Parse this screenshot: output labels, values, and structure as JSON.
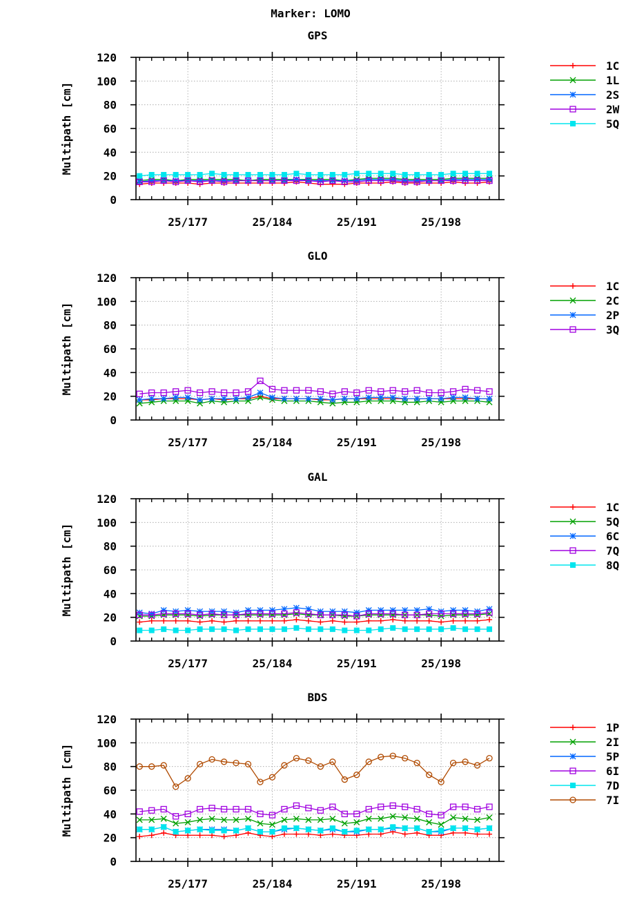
{
  "figure_title": "Marker: LOMO",
  "chart_data": [
    {
      "type": "line",
      "title": "GPS",
      "ylabel": "Multipath [cm]",
      "xlabel": "",
      "ylim": [
        0,
        120
      ],
      "yticks": [
        0,
        20,
        40,
        60,
        80,
        100,
        120
      ],
      "xlim": [
        172.7,
        202.8
      ],
      "xticks": [
        {
          "value": 177,
          "label": "25/177"
        },
        {
          "value": 184,
          "label": "25/184"
        },
        {
          "value": 191,
          "label": "25/191"
        },
        {
          "value": 198,
          "label": "25/198"
        }
      ],
      "grid": true,
      "legend_position": "right",
      "x": [
        173,
        174,
        175,
        176,
        177,
        178,
        179,
        180,
        181,
        182,
        183,
        184,
        185,
        186,
        187,
        188,
        189,
        190,
        191,
        192,
        193,
        194,
        195,
        196,
        197,
        198,
        199,
        200,
        201,
        202
      ],
      "series": [
        {
          "name": "1C",
          "color": "#ff0000",
          "marker": "plus",
          "values": [
            13,
            14,
            14,
            14,
            14,
            13,
            14,
            14,
            14,
            14,
            14,
            14,
            14,
            15,
            14,
            13,
            13,
            13,
            14,
            14,
            14,
            15,
            14,
            14,
            14,
            14,
            15,
            14,
            14,
            15
          ]
        },
        {
          "name": "1L",
          "color": "#00a000",
          "marker": "x",
          "values": [
            16,
            17,
            17,
            16,
            17,
            17,
            17,
            17,
            17,
            16,
            17,
            17,
            17,
            17,
            17,
            17,
            17,
            16,
            17,
            18,
            18,
            18,
            17,
            17,
            17,
            17,
            18,
            18,
            18,
            18
          ]
        },
        {
          "name": "2S",
          "color": "#0066ff",
          "marker": "star",
          "values": [
            15,
            16,
            16,
            16,
            16,
            16,
            16,
            16,
            16,
            16,
            16,
            16,
            16,
            17,
            16,
            16,
            16,
            16,
            16,
            17,
            17,
            17,
            16,
            16,
            16,
            16,
            17,
            17,
            17,
            17
          ]
        },
        {
          "name": "2W",
          "color": "#a000e0",
          "marker": "square",
          "values": [
            15,
            15,
            16,
            15,
            16,
            15,
            16,
            15,
            16,
            16,
            16,
            16,
            16,
            16,
            16,
            15,
            16,
            15,
            15,
            16,
            16,
            16,
            15,
            15,
            16,
            16,
            16,
            16,
            16,
            16
          ]
        },
        {
          "name": "5Q",
          "color": "#00e5ee",
          "marker": "filled-square",
          "values": [
            20,
            21,
            21,
            21,
            21,
            21,
            22,
            21,
            21,
            21,
            21,
            21,
            21,
            22,
            21,
            21,
            21,
            21,
            22,
            22,
            22,
            22,
            21,
            21,
            21,
            21,
            22,
            22,
            22,
            22
          ]
        }
      ]
    },
    {
      "type": "line",
      "title": "GLO",
      "ylabel": "Multipath [cm]",
      "xlabel": "",
      "ylim": [
        0,
        120
      ],
      "yticks": [
        0,
        20,
        40,
        60,
        80,
        100,
        120
      ],
      "xlim": [
        172.7,
        202.8
      ],
      "xticks": [
        {
          "value": 177,
          "label": "25/177"
        },
        {
          "value": 184,
          "label": "25/184"
        },
        {
          "value": 191,
          "label": "25/191"
        },
        {
          "value": 198,
          "label": "25/198"
        }
      ],
      "grid": true,
      "legend_position": "right",
      "x": [
        173,
        174,
        175,
        176,
        177,
        178,
        179,
        180,
        181,
        182,
        183,
        184,
        185,
        186,
        187,
        188,
        189,
        190,
        191,
        192,
        193,
        194,
        195,
        196,
        197,
        198,
        199,
        200,
        201,
        202
      ],
      "series": [
        {
          "name": "1C",
          "color": "#ff0000",
          "marker": "plus",
          "values": [
            17,
            17,
            18,
            18,
            18,
            17,
            18,
            17,
            18,
            18,
            20,
            18,
            18,
            18,
            18,
            17,
            17,
            18,
            18,
            18,
            18,
            18,
            18,
            18,
            18,
            18,
            18,
            18,
            18,
            18
          ]
        },
        {
          "name": "2C",
          "color": "#00a000",
          "marker": "x",
          "values": [
            14,
            15,
            16,
            16,
            16,
            14,
            16,
            15,
            16,
            16,
            19,
            17,
            16,
            16,
            16,
            15,
            14,
            15,
            15,
            16,
            16,
            16,
            15,
            15,
            16,
            15,
            16,
            16,
            16,
            15
          ]
        },
        {
          "name": "2P",
          "color": "#0066ff",
          "marker": "star",
          "values": [
            17,
            18,
            18,
            19,
            19,
            17,
            18,
            18,
            18,
            19,
            23,
            19,
            18,
            18,
            18,
            18,
            17,
            18,
            18,
            19,
            19,
            19,
            18,
            18,
            18,
            18,
            19,
            19,
            18,
            18
          ]
        },
        {
          "name": "3Q",
          "color": "#a000e0",
          "marker": "square",
          "values": [
            22,
            23,
            23,
            24,
            25,
            23,
            24,
            23,
            23,
            24,
            33,
            26,
            25,
            25,
            25,
            24,
            22,
            24,
            23,
            25,
            24,
            25,
            24,
            25,
            23,
            23,
            24,
            26,
            25,
            24
          ]
        }
      ]
    },
    {
      "type": "line",
      "title": "GAL",
      "ylabel": "Multipath [cm]",
      "xlabel": "",
      "ylim": [
        0,
        120
      ],
      "yticks": [
        0,
        20,
        40,
        60,
        80,
        100,
        120
      ],
      "xlim": [
        172.7,
        202.8
      ],
      "xticks": [
        {
          "value": 177,
          "label": "25/177"
        },
        {
          "value": 184,
          "label": "25/184"
        },
        {
          "value": 191,
          "label": "25/191"
        },
        {
          "value": 198,
          "label": "25/198"
        }
      ],
      "grid": true,
      "legend_position": "right",
      "x": [
        173,
        174,
        175,
        176,
        177,
        178,
        179,
        180,
        181,
        182,
        183,
        184,
        185,
        186,
        187,
        188,
        189,
        190,
        191,
        192,
        193,
        194,
        195,
        196,
        197,
        198,
        199,
        200,
        201,
        202
      ],
      "series": [
        {
          "name": "1C",
          "color": "#ff0000",
          "marker": "plus",
          "values": [
            16,
            17,
            17,
            17,
            17,
            16,
            17,
            16,
            17,
            17,
            17,
            17,
            17,
            18,
            17,
            16,
            17,
            16,
            16,
            17,
            17,
            18,
            17,
            17,
            17,
            16,
            17,
            17,
            17,
            18
          ]
        },
        {
          "name": "5Q",
          "color": "#00a000",
          "marker": "x",
          "values": [
            21,
            21,
            22,
            22,
            22,
            21,
            22,
            22,
            22,
            22,
            22,
            22,
            22,
            23,
            22,
            22,
            22,
            21,
            21,
            22,
            22,
            22,
            22,
            22,
            22,
            21,
            22,
            22,
            22,
            23
          ]
        },
        {
          "name": "6C",
          "color": "#0066ff",
          "marker": "star",
          "values": [
            24,
            23,
            26,
            25,
            26,
            25,
            25,
            25,
            24,
            26,
            26,
            26,
            27,
            28,
            27,
            25,
            25,
            25,
            24,
            26,
            26,
            26,
            26,
            26,
            27,
            25,
            26,
            26,
            25,
            27
          ]
        },
        {
          "name": "7Q",
          "color": "#a000e0",
          "marker": "square",
          "values": [
            22,
            22,
            23,
            23,
            23,
            22,
            23,
            22,
            22,
            23,
            23,
            23,
            23,
            24,
            23,
            22,
            22,
            22,
            21,
            23,
            23,
            23,
            22,
            22,
            23,
            23,
            23,
            23,
            23,
            24
          ]
        },
        {
          "name": "8Q",
          "color": "#00e5ee",
          "marker": "filled-square",
          "values": [
            9,
            9,
            10,
            9,
            9,
            10,
            10,
            10,
            9,
            10,
            10,
            10,
            10,
            11,
            10,
            10,
            10,
            9,
            9,
            9,
            10,
            11,
            10,
            10,
            10,
            10,
            11,
            10,
            10,
            10
          ]
        }
      ]
    },
    {
      "type": "line",
      "title": "BDS",
      "ylabel": "Multipath [cm]",
      "xlabel": "",
      "ylim": [
        0,
        120
      ],
      "yticks": [
        0,
        20,
        40,
        60,
        80,
        100,
        120
      ],
      "xlim": [
        172.7,
        202.8
      ],
      "xticks": [
        {
          "value": 177,
          "label": "25/177"
        },
        {
          "value": 184,
          "label": "25/184"
        },
        {
          "value": 191,
          "label": "25/191"
        },
        {
          "value": 198,
          "label": "25/198"
        }
      ],
      "grid": true,
      "legend_position": "right",
      "x": [
        173,
        174,
        175,
        176,
        177,
        178,
        179,
        180,
        181,
        182,
        183,
        184,
        185,
        186,
        187,
        188,
        189,
        190,
        191,
        192,
        193,
        194,
        195,
        196,
        197,
        198,
        199,
        200,
        201,
        202
      ],
      "series": [
        {
          "name": "1P",
          "color": "#ff0000",
          "marker": "plus",
          "values": [
            21,
            22,
            24,
            22,
            22,
            22,
            22,
            21,
            22,
            24,
            22,
            21,
            23,
            23,
            23,
            22,
            23,
            22,
            22,
            23,
            23,
            25,
            23,
            24,
            22,
            22,
            24,
            24,
            23,
            23
          ]
        },
        {
          "name": "2I",
          "color": "#00a000",
          "marker": "x",
          "values": [
            35,
            35,
            36,
            32,
            33,
            35,
            36,
            35,
            35,
            36,
            32,
            31,
            35,
            36,
            35,
            35,
            36,
            32,
            33,
            36,
            36,
            38,
            37,
            36,
            33,
            31,
            37,
            36,
            35,
            37
          ]
        },
        {
          "name": "5P",
          "color": "#0066ff",
          "marker": "star",
          "values": [
            27,
            27,
            29,
            25,
            26,
            27,
            27,
            27,
            26,
            28,
            25,
            25,
            27,
            28,
            27,
            26,
            27,
            25,
            25,
            27,
            27,
            28,
            28,
            28,
            25,
            25,
            28,
            28,
            27,
            28
          ]
        },
        {
          "name": "6I",
          "color": "#a000e0",
          "marker": "square",
          "values": [
            42,
            43,
            44,
            38,
            40,
            44,
            45,
            44,
            44,
            44,
            40,
            39,
            44,
            47,
            45,
            43,
            46,
            40,
            40,
            44,
            46,
            47,
            46,
            44,
            40,
            39,
            46,
            46,
            44,
            46
          ]
        },
        {
          "name": "7D",
          "color": "#00e5ee",
          "marker": "filled-square",
          "values": [
            27,
            27,
            29,
            25,
            26,
            27,
            26,
            26,
            26,
            28,
            25,
            25,
            28,
            28,
            27,
            26,
            28,
            25,
            26,
            27,
            27,
            29,
            28,
            28,
            25,
            26,
            28,
            28,
            27,
            28
          ]
        },
        {
          "name": "7I",
          "color": "#b04a00",
          "marker": "circle",
          "values": [
            80,
            80,
            81,
            63,
            70,
            82,
            86,
            84,
            83,
            82,
            67,
            71,
            81,
            87,
            85,
            80,
            84,
            69,
            73,
            84,
            88,
            89,
            87,
            83,
            73,
            67,
            83,
            84,
            81,
            87
          ]
        }
      ]
    }
  ]
}
